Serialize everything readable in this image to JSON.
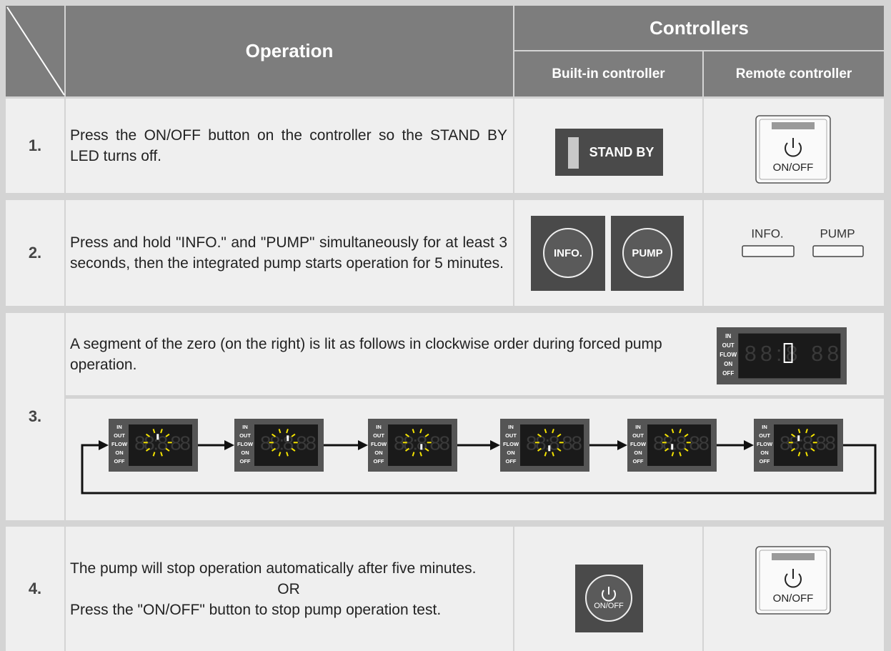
{
  "header": {
    "operation": "Operation",
    "controllers": "Controllers",
    "built_in": "Built-in controller",
    "remote": "Remote controller"
  },
  "rows": [
    {
      "number": "1.",
      "text": "Press the ON/OFF button on the controller so the STAND BY LED turns off.",
      "built_in": [
        "STAND BY"
      ],
      "remote": [
        "ON/OFF"
      ]
    },
    {
      "number": "2.",
      "text": "Press and hold \"INFO.\" and \"PUMP\" simultaneously for at least 3 seconds, then the integrated pump starts operation for 5 minutes.",
      "built_in": [
        "INFO.",
        "PUMP"
      ],
      "remote": [
        "INFO.",
        "PUMP"
      ]
    },
    {
      "number": "3.",
      "text": "A segment of the zero (on the right) is lit as follows in clockwise order during forced pump operation.",
      "display_labels": [
        "IN",
        "OUT",
        "FLOW",
        "ON",
        "OFF"
      ]
    },
    {
      "number": "4.",
      "text": [
        "The pump will stop operation automatically after five minutes.",
        "OR",
        "Press the \"ON/OFF\" button to stop pump operation test."
      ],
      "built_in": [
        "ON/OFF"
      ],
      "remote": [
        "ON/OFF"
      ]
    }
  ]
}
